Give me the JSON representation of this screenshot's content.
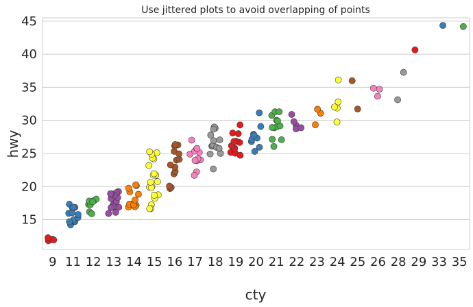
{
  "chart_data": {
    "type": "scatter",
    "title": "Use jittered plots to avoid overlapping of points",
    "xlabel": "cty",
    "ylabel": "hwy",
    "categories": [
      "9",
      "11",
      "12",
      "13",
      "14",
      "15",
      "16",
      "17",
      "18",
      "19",
      "20",
      "21",
      "22",
      "23",
      "24",
      "25",
      "26",
      "28",
      "29",
      "33",
      "35"
    ],
    "ylim": [
      10.5,
      45.5
    ],
    "yticks": [
      15,
      20,
      25,
      30,
      35,
      40,
      45
    ],
    "grid": "horizontal",
    "legend": "none",
    "palette": [
      "#e41a1c",
      "#377eb8",
      "#4daf4a",
      "#984ea3",
      "#ff7f00",
      "#ffff33",
      "#a65628",
      "#f781bf",
      "#999999"
    ],
    "points": [
      {
        "cty": "9",
        "hwy": [
          12,
          12,
          12,
          12,
          12
        ]
      },
      {
        "cty": "11",
        "hwy": [
          14,
          15,
          15,
          15,
          15,
          15,
          15,
          16,
          16,
          16,
          17,
          17,
          17,
          17
        ]
      },
      {
        "cty": "12",
        "hwy": [
          16,
          16,
          17,
          17,
          18,
          18,
          18,
          18,
          18
        ]
      },
      {
        "cty": "13",
        "hwy": [
          16,
          16,
          17,
          17,
          17,
          17,
          17,
          18,
          18,
          18,
          19,
          19,
          19,
          19,
          19
        ]
      },
      {
        "cty": "14",
        "hwy": [
          17,
          17,
          17,
          17,
          17,
          17,
          18,
          19,
          19,
          20,
          20,
          20
        ]
      },
      {
        "cty": "15",
        "hwy": [
          17,
          17,
          17,
          18,
          19,
          19,
          20,
          20,
          20,
          21,
          21,
          22,
          22,
          22,
          23,
          24,
          24,
          25,
          25,
          25
        ]
      },
      {
        "cty": "16",
        "hwy": [
          20,
          20,
          20,
          22,
          22,
          23,
          23,
          24,
          24,
          25,
          25,
          26,
          26,
          26
        ]
      },
      {
        "cty": "17",
        "hwy": [
          22,
          22,
          24,
          24,
          24,
          24,
          25,
          25,
          25,
          26,
          26,
          27
        ]
      },
      {
        "cty": "18",
        "hwy": [
          23,
          25,
          25,
          26,
          26,
          26,
          26,
          26,
          27,
          27,
          28,
          29,
          29,
          29
        ]
      },
      {
        "cty": "19",
        "hwy": [
          25,
          25,
          25,
          26,
          26,
          26,
          27,
          27,
          27,
          28,
          28,
          29
        ]
      },
      {
        "cty": "20",
        "hwy": [
          25,
          26,
          27,
          27,
          27,
          28,
          28,
          29,
          31
        ]
      },
      {
        "cty": "21",
        "hwy": [
          26,
          27,
          27,
          29,
          29,
          29,
          29,
          30,
          30,
          31,
          31,
          31
        ]
      },
      {
        "cty": "22",
        "hwy": [
          29,
          29,
          29,
          30,
          31
        ]
      },
      {
        "cty": "23",
        "hwy": [
          29,
          31,
          32
        ]
      },
      {
        "cty": "24",
        "hwy": [
          30,
          32,
          32,
          33,
          36
        ]
      },
      {
        "cty": "25",
        "hwy": [
          32,
          36
        ]
      },
      {
        "cty": "26",
        "hwy": [
          34,
          35,
          35
        ]
      },
      {
        "cty": "28",
        "hwy": [
          33,
          37
        ]
      },
      {
        "cty": "29",
        "hwy": [
          41
        ]
      },
      {
        "cty": "33",
        "hwy": [
          44
        ]
      },
      {
        "cty": "35",
        "hwy": [
          44
        ]
      }
    ]
  }
}
